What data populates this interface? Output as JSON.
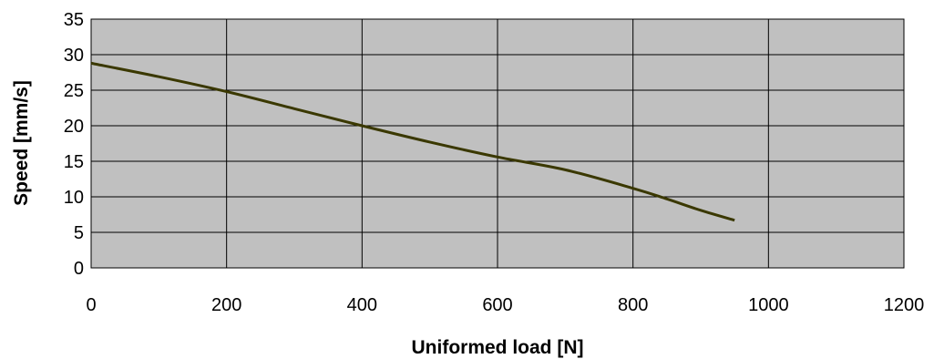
{
  "chart_data": {
    "type": "line",
    "title": "",
    "xlabel": "Uniformed load [N]",
    "ylabel": "Speed [mm/s]",
    "xlim": [
      0,
      1200
    ],
    "ylim": [
      0,
      35
    ],
    "xticks": [
      0,
      200,
      400,
      600,
      800,
      1000,
      1200
    ],
    "yticks": [
      0,
      5,
      10,
      15,
      20,
      25,
      30,
      35
    ],
    "grid": true,
    "legend": "none",
    "plot_background": "#c0c0c0",
    "line_color": "#3a3800",
    "series": [
      {
        "x": [
          0,
          100,
          200,
          300,
          400,
          500,
          600,
          700,
          800,
          850,
          900,
          950
        ],
        "y": [
          28.8,
          26.9,
          24.8,
          22.4,
          20.0,
          17.7,
          15.6,
          13.8,
          11.2,
          9.7,
          8.1,
          6.7
        ]
      }
    ]
  }
}
